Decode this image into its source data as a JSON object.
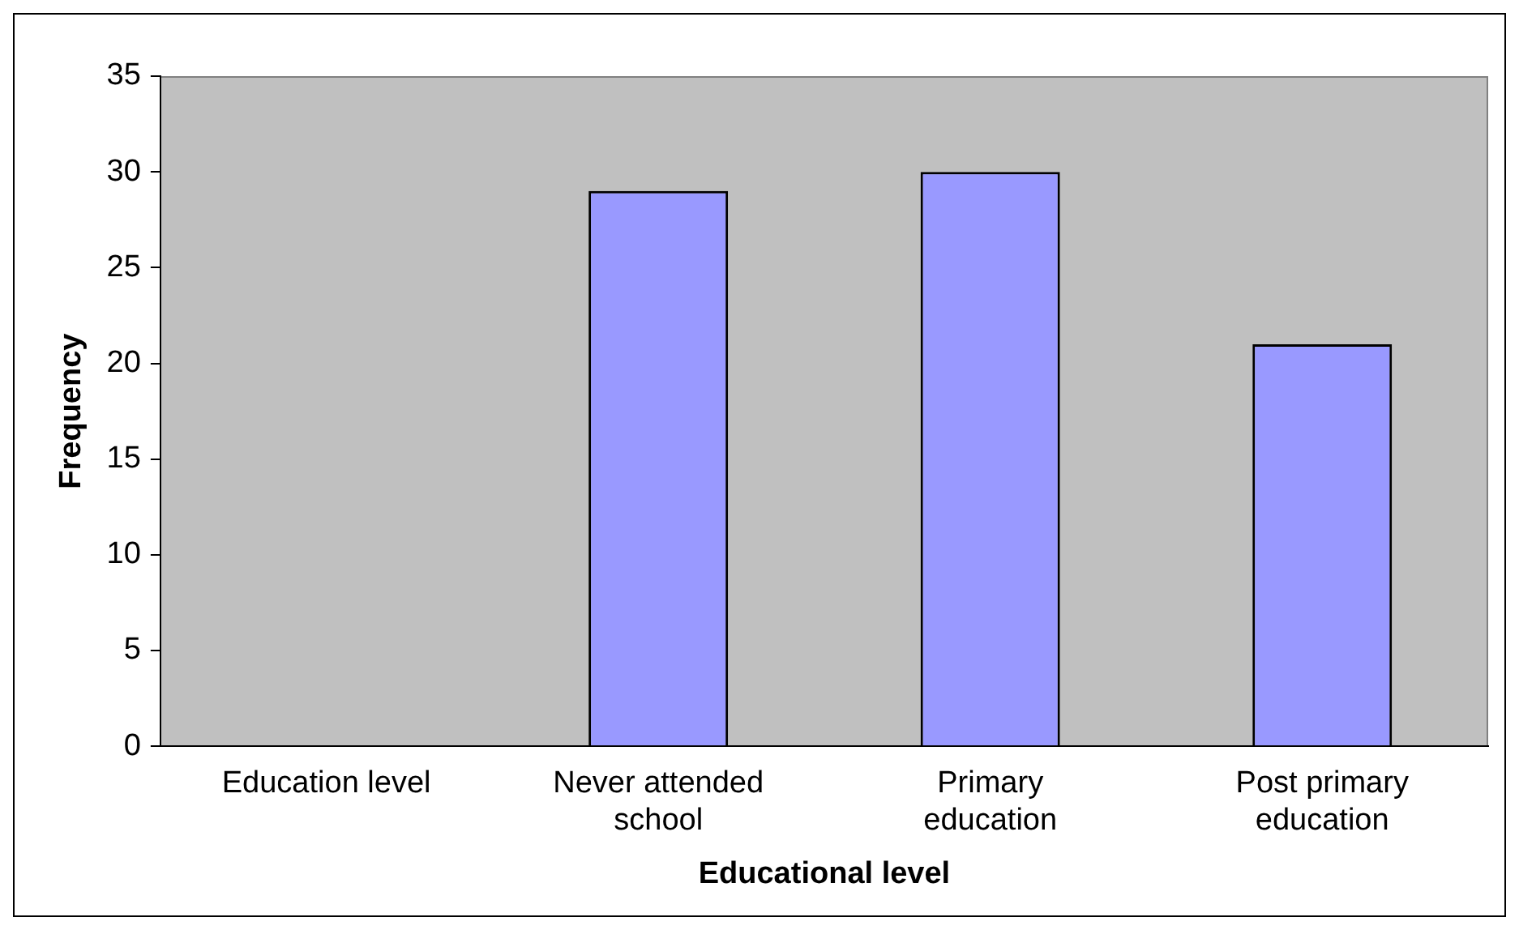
{
  "chart_data": {
    "type": "bar",
    "xlabel": "Educational level",
    "ylabel": "Frequency",
    "categories": [
      "Education level",
      "Never attended school",
      "Primary education",
      "Post primary education"
    ],
    "values": [
      null,
      29,
      30,
      21
    ],
    "color": "#9999ff",
    "ylim": [
      0,
      35
    ],
    "yticks": [
      0,
      5,
      10,
      15,
      20,
      25,
      30,
      35
    ],
    "grid": false,
    "legend": false
  }
}
